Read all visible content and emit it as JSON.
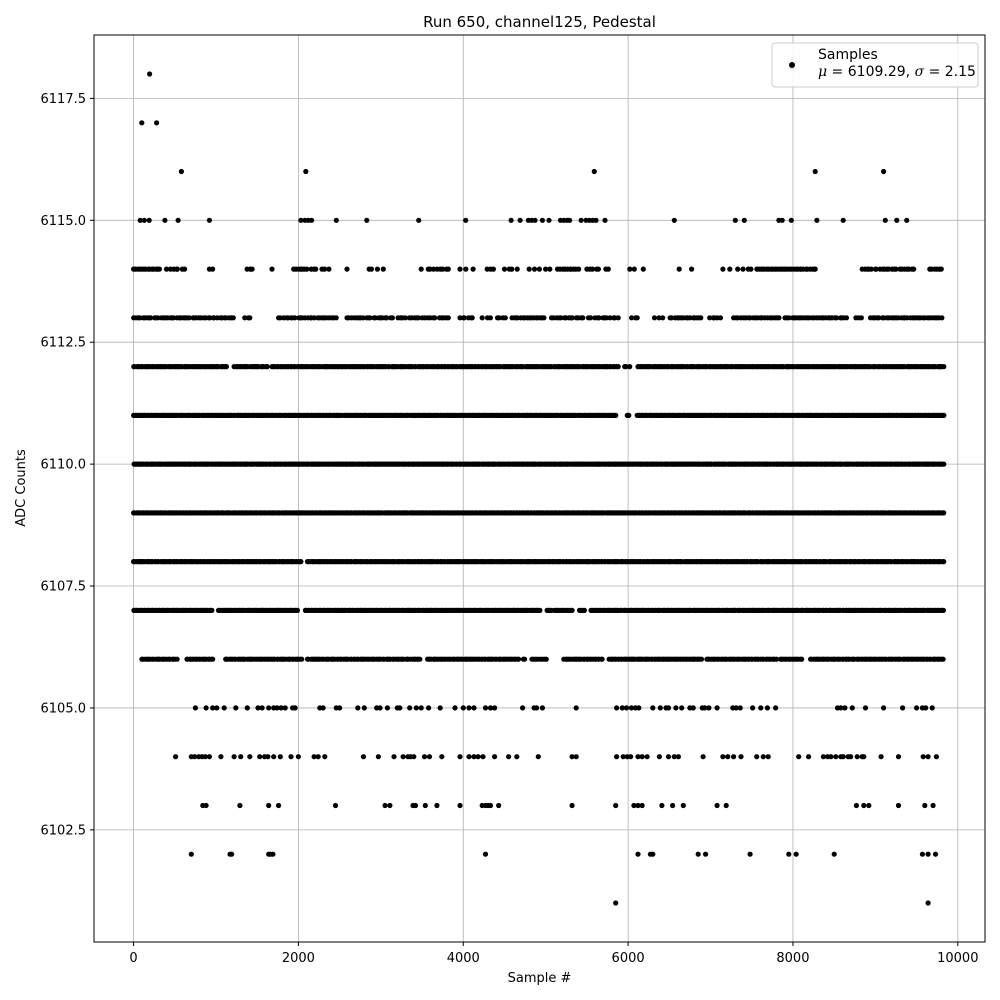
{
  "chart_data": {
    "type": "scatter",
    "title": "Run 650, channel125, Pedestal",
    "xlabel": "Sample #",
    "ylabel": "ADC Counts",
    "xlim": [
      -480,
      10330
    ],
    "ylim": [
      6100.2,
      6118.8
    ],
    "xticks": [
      0,
      2000,
      4000,
      6000,
      8000,
      10000
    ],
    "xtick_labels": [
      "0",
      "2000",
      "4000",
      "6000",
      "8000",
      "10000"
    ],
    "yticks": [
      6102.5,
      6105.0,
      6107.5,
      6110.0,
      6112.5,
      6115.0,
      6117.5
    ],
    "ytick_labels": [
      "6102.5",
      "6105.0",
      "6107.5",
      "6110.0",
      "6112.5",
      "6115.0",
      "6117.5"
    ],
    "grid": true,
    "marker_color": "#000000",
    "legend": {
      "placement": "top-right",
      "label": "Samples",
      "stats": {
        "mu_symbol": "μ",
        "mu_value": "6109.29",
        "sigma_symbol": "σ",
        "sigma_value": "2.15"
      }
    },
    "series": [
      {
        "x_range": [
          0,
          9830
        ],
        "mean": 6109.29,
        "std": 2.15,
        "levels": [
          {
            "y": 6118,
            "points": [
              195
            ]
          },
          {
            "y": 6117,
            "points": [
              100,
              280
            ]
          },
          {
            "y": 6116,
            "points": [
              580,
              2090,
              5590,
              8270,
              9100
            ]
          },
          {
            "y": 6115,
            "points": [
              80,
              130,
              190,
              380,
              540,
              920,
              2030,
              2080,
              2120,
              2160,
              2460,
              2830,
              3460,
              4030,
              4580,
              4690,
              4790,
              4830,
              4870,
              4960,
              5040,
              5180,
              5220,
              5260,
              5290,
              5430,
              5490,
              5530,
              5570,
              5610,
              5720,
              6560,
              7300,
              7410,
              7830,
              7870,
              7980,
              8290,
              8610,
              9120,
              9260,
              9380
            ]
          },
          {
            "y": 6114,
            "segments": [
              [
                0,
                320,
                14
              ],
              [
                400,
                620,
                7
              ],
              [
                920,
                960,
                2
              ],
              [
                1370,
                1450,
                3
              ],
              [
                1680,
                1680,
                1
              ],
              [
                1930,
                2210,
                10
              ],
              [
                2280,
                2370,
                3
              ],
              [
                2590,
                2590,
                1
              ],
              [
                2850,
                2960,
                3
              ],
              [
                3030,
                3030,
                1
              ],
              [
                3490,
                3490,
                1
              ],
              [
                3570,
                3820,
                8
              ],
              [
                3960,
                4120,
                3
              ],
              [
                4290,
                4370,
                3
              ],
              [
                4500,
                4660,
                4
              ],
              [
                4800,
                5050,
                5
              ],
              [
                5140,
                5400,
                10
              ],
              [
                5500,
                5640,
                5
              ],
              [
                5730,
                5760,
                2
              ],
              [
                6020,
                6220,
                3
              ],
              [
                6620,
                6770,
                2
              ],
              [
                7150,
                7330,
                3
              ],
              [
                7390,
                7490,
                3
              ],
              [
                7560,
                8280,
                30
              ],
              [
                8840,
                9470,
                22
              ],
              [
                9660,
                9800,
                6
              ]
            ]
          },
          {
            "y": 6113,
            "segments": [
              [
                0,
                1210,
                45
              ],
              [
                1350,
                1420,
                3
              ],
              [
                1760,
                2460,
                25
              ],
              [
                2590,
                3140,
                20
              ],
              [
                3210,
                3830,
                20
              ],
              [
                3960,
                4120,
                6
              ],
              [
                4230,
                4330,
                3
              ],
              [
                4410,
                4510,
                4
              ],
              [
                4590,
                4990,
                16
              ],
              [
                5070,
                5450,
                14
              ],
              [
                5520,
                5880,
                12
              ],
              [
                6040,
                6120,
                3
              ],
              [
                6320,
                6420,
                3
              ],
              [
                6510,
                6890,
                15
              ],
              [
                6990,
                7130,
                5
              ],
              [
                7280,
                7830,
                20
              ],
              [
                7900,
                8650,
                28
              ],
              [
                8760,
                8840,
                3
              ],
              [
                8940,
                9810,
                32
              ]
            ]
          },
          {
            "y": 6112,
            "segments": [
              [
                0,
                1130,
                60
              ],
              [
                1220,
                1630,
                20
              ],
              [
                1680,
                5880,
                210
              ],
              [
                5950,
                6020,
                3
              ],
              [
                6120,
                9830,
                190
              ]
            ]
          },
          {
            "y": 6111,
            "segments": [
              [
                0,
                5850,
                320
              ],
              [
                5990,
                6020,
                2
              ],
              [
                6110,
                9830,
                210
              ]
            ]
          },
          {
            "y": 6110,
            "segments": [
              [
                0,
                9830,
                560
              ]
            ]
          },
          {
            "y": 6109,
            "segments": [
              [
                0,
                9830,
                550
              ]
            ]
          },
          {
            "y": 6108,
            "segments": [
              [
                0,
                2030,
                120
              ],
              [
                2110,
                9830,
                430
              ]
            ]
          },
          {
            "y": 6107,
            "segments": [
              [
                0,
                950,
                55
              ],
              [
                1030,
                1990,
                55
              ],
              [
                2080,
                4930,
                160
              ],
              [
                5010,
                5320,
                15
              ],
              [
                5400,
                5480,
                4
              ],
              [
                5550,
                9830,
                230
              ]
            ]
          },
          {
            "y": 6106,
            "segments": [
              [
                100,
                530,
                22
              ],
              [
                640,
                960,
                18
              ],
              [
                1110,
                2040,
                50
              ],
              [
                2110,
                3480,
                70
              ],
              [
                3560,
                4670,
                60
              ],
              [
                4730,
                4750,
                2
              ],
              [
                4830,
                5010,
                8
              ],
              [
                5220,
                5690,
                25
              ],
              [
                5770,
                6890,
                65
              ],
              [
                6950,
                7800,
                45
              ],
              [
                7850,
                8110,
                14
              ],
              [
                8210,
                9830,
                85
              ]
            ]
          },
          {
            "y": 6105,
            "points": [
              750,
              880,
              960,
              1010,
              1100,
              1240,
              1380,
              1510,
              1560,
              1640,
              1700,
              1740,
              1790,
              1840,
              1930,
              1960,
              2260,
              2300,
              2460,
              2500,
              2720,
              2800,
              2950,
              2990,
              3080,
              3200,
              3230,
              3350,
              3430,
              3490,
              3580,
              3720,
              3900,
              4000,
              4070,
              4130,
              4270,
              4330,
              4380,
              4720,
              4860,
              4890,
              4960,
              5370,
              5860,
              5930,
              5980,
              6040,
              6090,
              6130,
              6300,
              6390,
              6460,
              6490,
              6580,
              6650,
              6750,
              6790,
              6900,
              6930,
              6980,
              7080,
              7270,
              7310,
              7360,
              7510,
              7610,
              7690,
              7790,
              8540,
              8580,
              8630,
              8720,
              8880,
              9100,
              9330,
              9500,
              9570,
              9610,
              9690
            ]
          },
          {
            "y": 6104,
            "points": [
              510,
              700,
              740,
              790,
              830,
              870,
              920,
              1060,
              1220,
              1300,
              1410,
              1530,
              1590,
              1630,
              1700,
              1780,
              1910,
              2000,
              2190,
              2240,
              2320,
              2790,
              2970,
              3160,
              3270,
              3330,
              3360,
              3400,
              3530,
              3590,
              3740,
              3960,
              4070,
              4130,
              4180,
              4240,
              4380,
              4550,
              4650,
              4910,
              5320,
              5370,
              5860,
              5940,
              5990,
              6030,
              6120,
              6170,
              6230,
              6380,
              6490,
              6560,
              6610,
              6910,
              7150,
              7210,
              7280,
              7370,
              7560,
              7640,
              7700,
              8070,
              8190,
              8370,
              8420,
              8460,
              8520,
              8580,
              8610,
              8670,
              8700,
              8780,
              8840,
              8860,
              9070,
              9280,
              9580,
              9640,
              9740
            ]
          },
          {
            "y": 6103,
            "points": [
              840,
              880,
              1290,
              1640,
              1760,
              2450,
              3050,
              3110,
              3390,
              3420,
              3540,
              3680,
              3960,
              4230,
              4270,
              4300,
              4330,
              4430,
              5320,
              5850,
              6070,
              6120,
              6170,
              6410,
              6540,
              6670,
              7080,
              7190,
              8770,
              8860,
              8920,
              9280,
              9600,
              9700
            ]
          },
          {
            "y": 6102,
            "points": [
              700,
              1170,
              1190,
              1640,
              1660,
              1690,
              4270,
              6120,
              6270,
              6300,
              6850,
              6940,
              7480,
              7950,
              8040,
              8500,
              9570,
              9640,
              9730
            ]
          },
          {
            "y": 6101,
            "points": [
              5850,
              9640
            ]
          }
        ]
      }
    ]
  }
}
